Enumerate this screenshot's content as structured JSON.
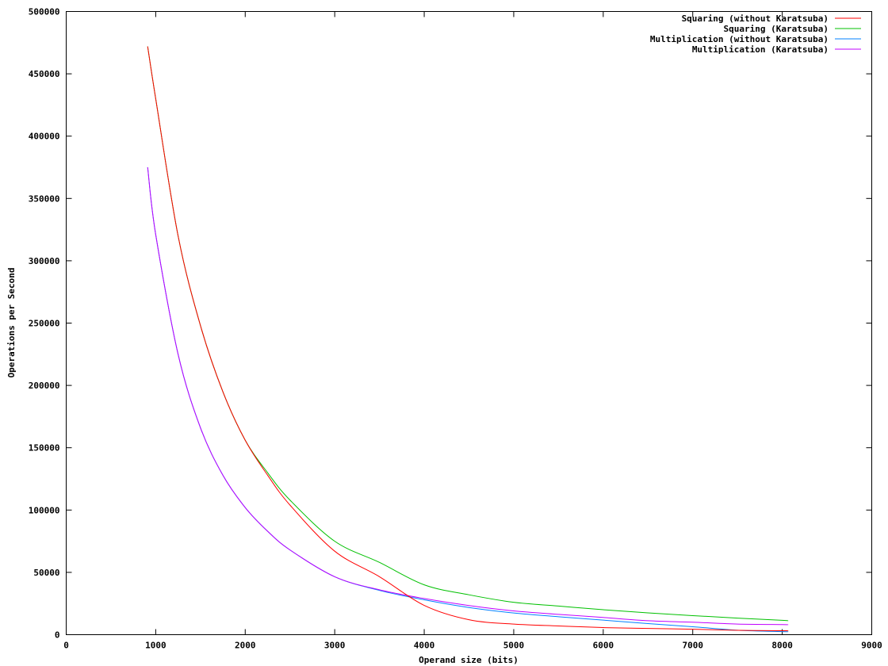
{
  "chart_data": {
    "type": "line",
    "title": "",
    "xlabel": "Operand size (bits)",
    "ylabel": "Operations per Second",
    "xlim": [
      0,
      9000
    ],
    "ylim": [
      0,
      500000
    ],
    "xticks": [
      0,
      1000,
      2000,
      3000,
      4000,
      5000,
      6000,
      7000,
      8000,
      9000
    ],
    "yticks": [
      0,
      50000,
      100000,
      150000,
      200000,
      250000,
      300000,
      350000,
      400000,
      450000,
      500000
    ],
    "grid": false,
    "legend_position": "top-right",
    "x": [
      910,
      1000,
      1250,
      1500,
      1750,
      2000,
      2250,
      2500,
      3000,
      3500,
      4000,
      4500,
      5000,
      5500,
      6000,
      6500,
      7000,
      7500,
      8000,
      8064
    ],
    "series": [
      {
        "name": "Squaring (without Karatsuba)",
        "color": "#ff0000",
        "values": [
          472000,
          430000,
          320000,
          248000,
          195000,
          156000,
          128000,
          104000,
          67000,
          46500,
          23500,
          12000,
          8500,
          7000,
          5700,
          5000,
          4400,
          3500,
          3200,
          3200
        ]
      },
      {
        "name": "Squaring (Karatsuba)",
        "color": "#00c000",
        "values": [
          472000,
          430000,
          320000,
          248000,
          195000,
          156000,
          130000,
          108000,
          75000,
          58000,
          40000,
          32000,
          26000,
          23000,
          20000,
          17500,
          15300,
          13300,
          11500,
          11200
        ]
      },
      {
        "name": "Multiplication (without Karatsuba)",
        "color": "#0080ff",
        "values": [
          375000,
          321000,
          225000,
          166000,
          128000,
          102000,
          83000,
          68000,
          46500,
          35500,
          28000,
          21800,
          17400,
          14400,
          11700,
          8900,
          6400,
          3600,
          2500,
          2500
        ]
      },
      {
        "name": "Multiplication (Karatsuba)",
        "color": "#c000ff",
        "values": [
          375000,
          321000,
          225000,
          166000,
          128000,
          102000,
          83000,
          68000,
          46500,
          36000,
          29000,
          23400,
          19100,
          16300,
          13800,
          11200,
          10000,
          8500,
          8100,
          8000
        ]
      }
    ]
  }
}
